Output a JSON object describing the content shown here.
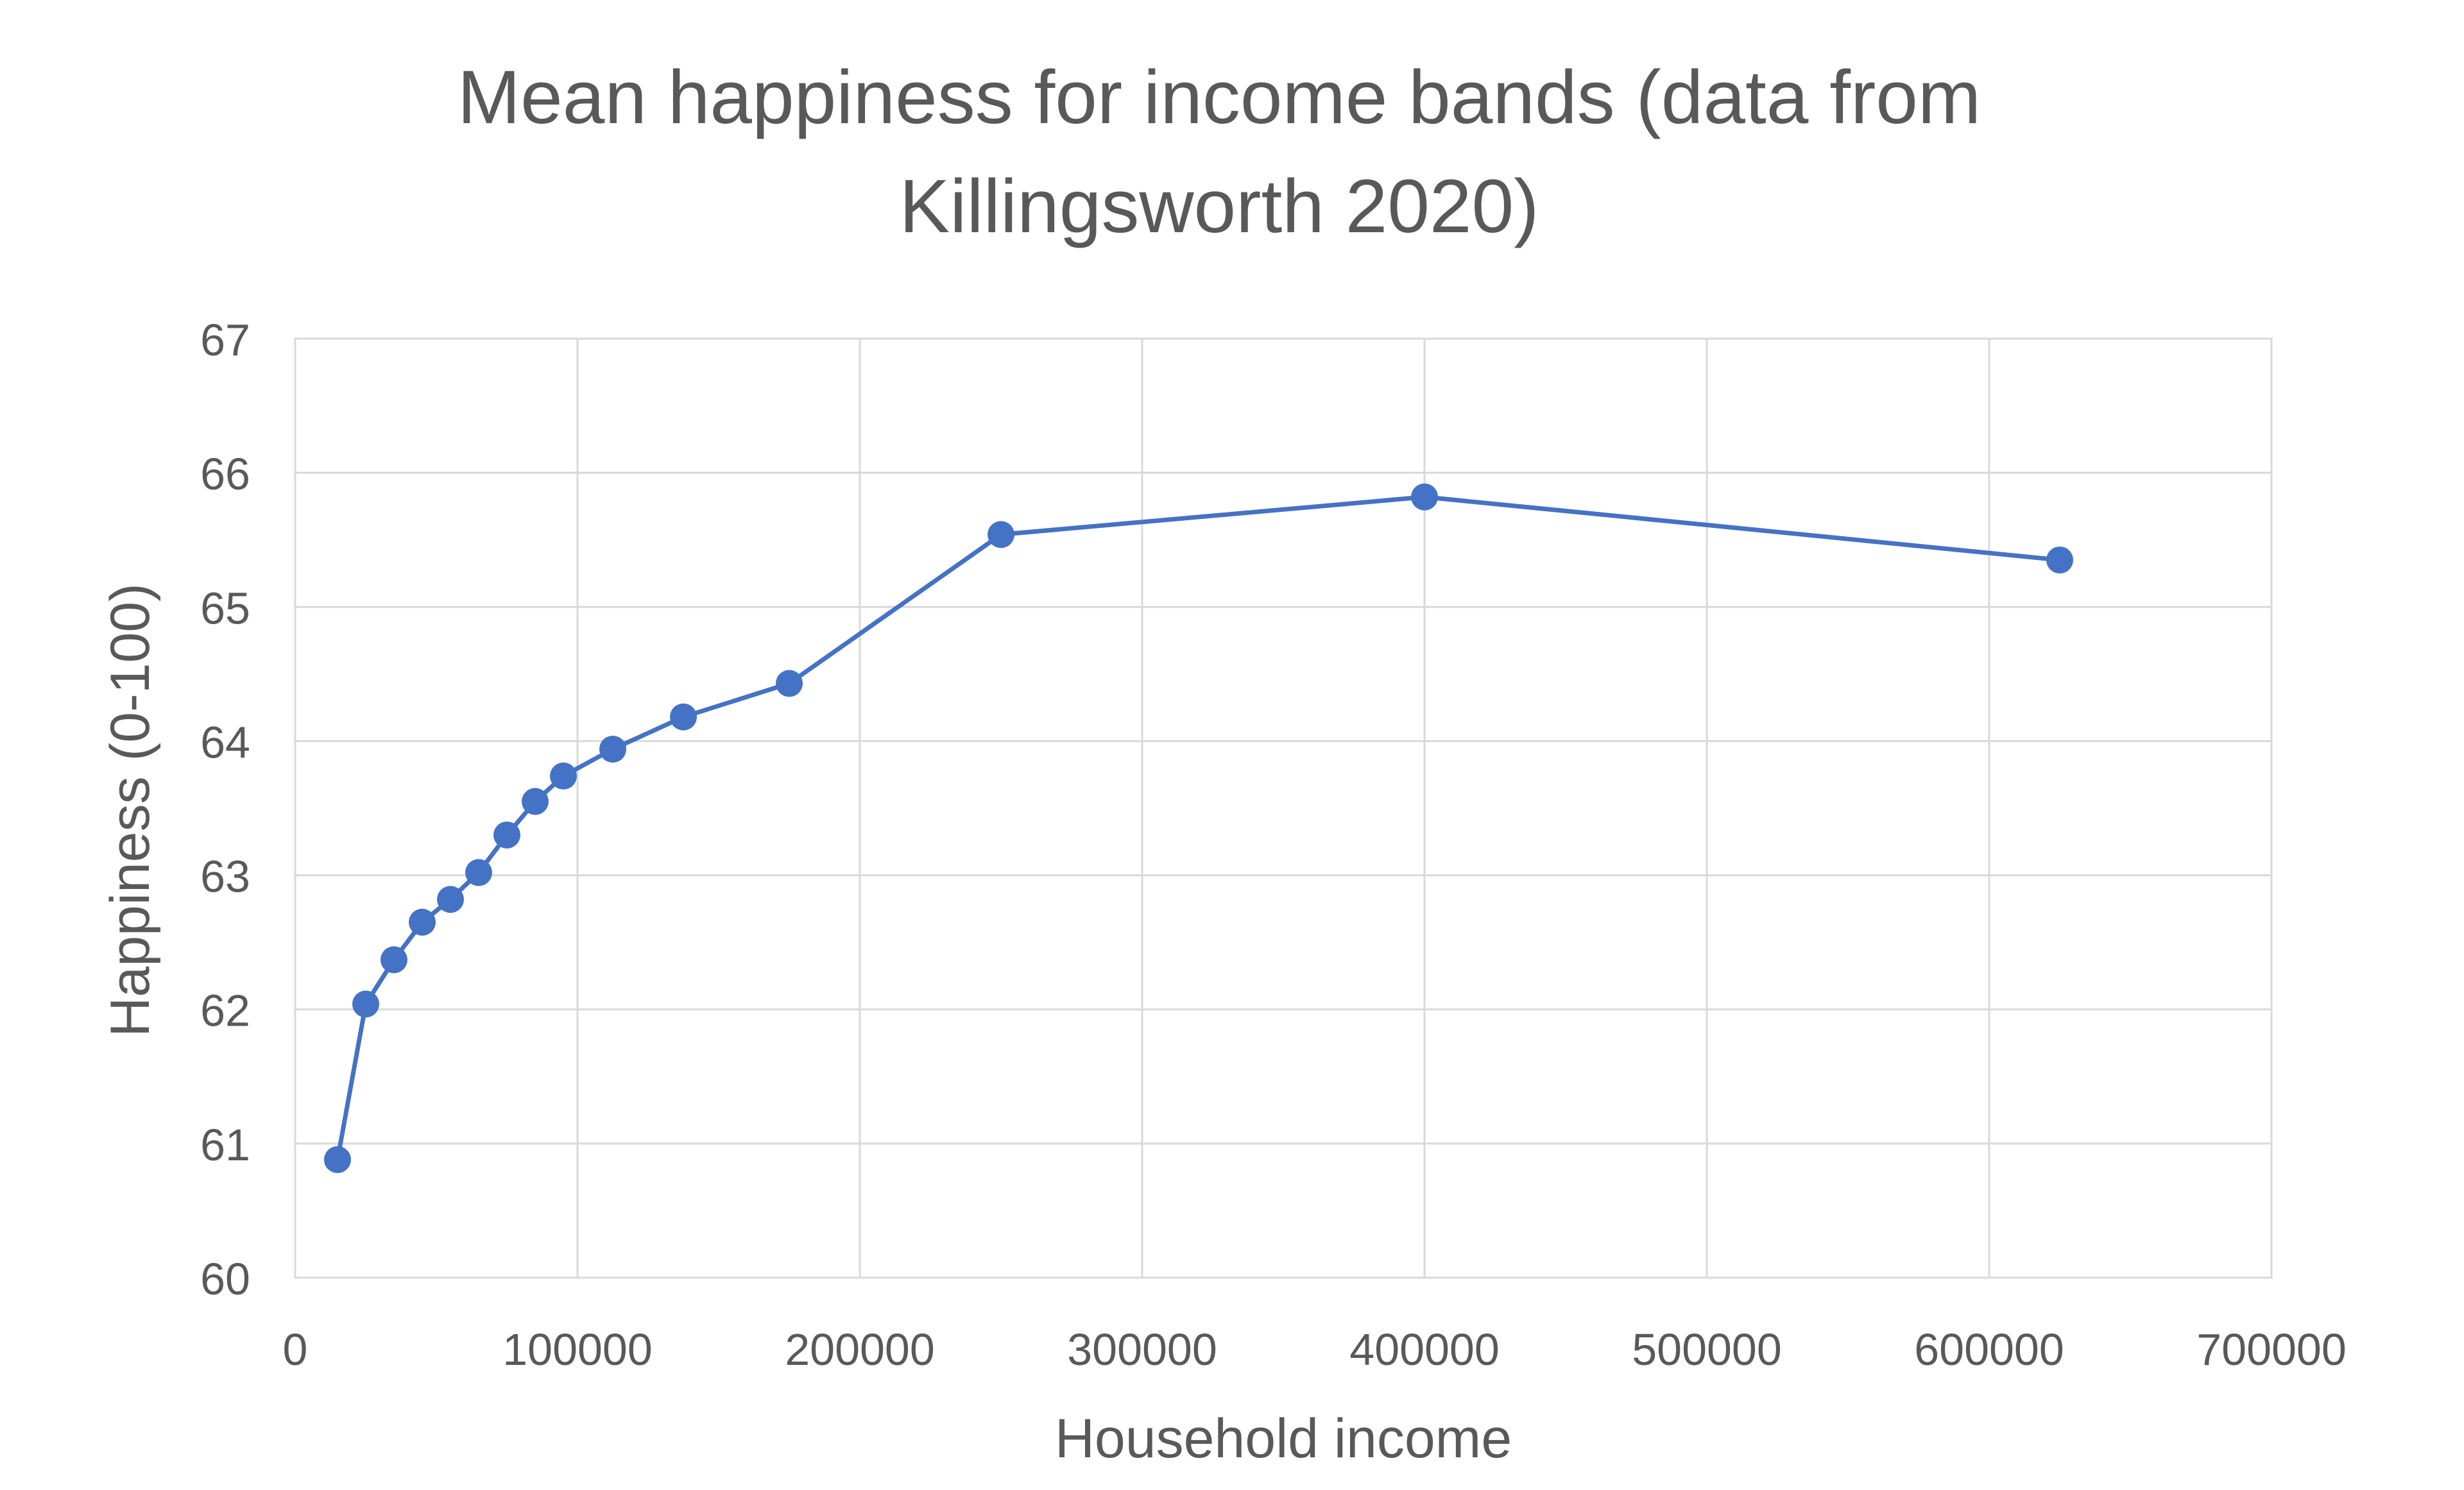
{
  "chart_data": {
    "type": "scatter",
    "title_lines": [
      "Mean happiness for income bands (data from",
      "Killingsworth 2020)"
    ],
    "xlabel": "Household income",
    "ylabel": "Happiness (0-100)",
    "xlim": [
      0,
      700000
    ],
    "ylim": [
      60,
      67
    ],
    "x_ticks": [
      0,
      100000,
      200000,
      300000,
      400000,
      500000,
      600000,
      700000
    ],
    "x_tick_labels": [
      "0",
      "100000",
      "200000",
      "300000",
      "400000",
      "500000",
      "600000",
      "700000"
    ],
    "y_ticks": [
      60,
      61,
      62,
      63,
      64,
      65,
      66,
      67
    ],
    "y_tick_labels": [
      "60",
      "61",
      "62",
      "63",
      "64",
      "65",
      "66",
      "67"
    ],
    "grid": true,
    "lines": true,
    "markers": true,
    "series": [
      {
        "color": "#4472C4",
        "x": [
          15000,
          25000,
          35000,
          45000,
          55000,
          65000,
          75000,
          85000,
          95000,
          112500,
          137500,
          175000,
          250000,
          400000,
          625000
        ],
        "y": [
          60.88,
          62.04,
          62.37,
          62.65,
          62.82,
          63.02,
          63.3,
          63.55,
          63.74,
          63.94,
          64.18,
          64.43,
          65.54,
          65.82,
          65.35
        ]
      }
    ]
  }
}
